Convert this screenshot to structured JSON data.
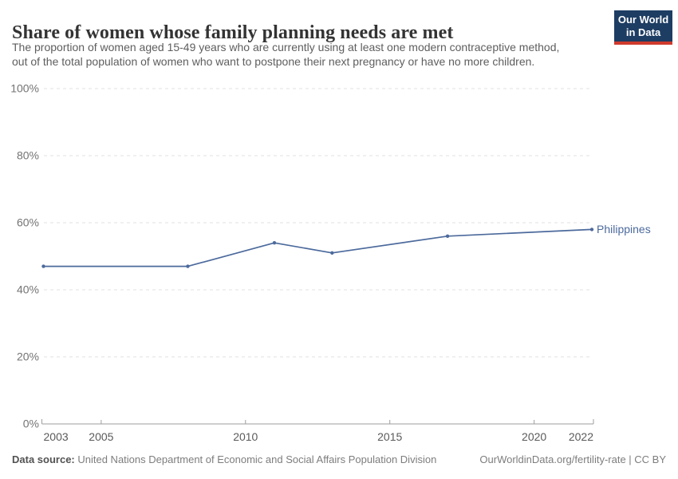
{
  "header": {
    "title": "Share of women whose family planning needs are met",
    "subtitle": [
      "The proportion of women aged 15-49 years who are currently using at least one modern contraceptive method,",
      "out of the total population of women who want to postpone their next pregnancy or have no more children."
    ],
    "logo": {
      "line1": "Our World",
      "line2": "in Data"
    }
  },
  "chart_data": {
    "type": "line",
    "title": "Share of women whose family planning needs are met",
    "series": [
      {
        "name": "Philippines",
        "color": "#4c6a9c",
        "x": [
          2003,
          2008,
          2011,
          2013,
          2017,
          2022
        ],
        "values": [
          47,
          47,
          54,
          51,
          56,
          58
        ]
      }
    ],
    "x_ticks": [
      2003,
      2005,
      2010,
      2015,
      2020,
      2022
    ],
    "y_ticks": [
      0,
      20,
      40,
      60,
      80,
      100
    ],
    "y_tick_suffix": "%",
    "xlim": [
      2003,
      2022
    ],
    "ylim": [
      0,
      100
    ],
    "grid": "horizontal-dashed",
    "legend_position": "end-of-line-label"
  },
  "footer": {
    "source_label": "Data source:",
    "source_text": " United Nations Department of Economic and Social Affairs Population Division",
    "attribution": "OurWorldinData.org/fertility-rate | CC BY"
  },
  "colors": {
    "line": "#4c6a9c",
    "logo_bg": "#1d3d63",
    "logo_accent": "#cf3a2c",
    "grid": "#e0e0e0",
    "axis": "#9e9e9e",
    "x_tick_text": "#5a5a5a",
    "y_tick_text": "#737373"
  }
}
